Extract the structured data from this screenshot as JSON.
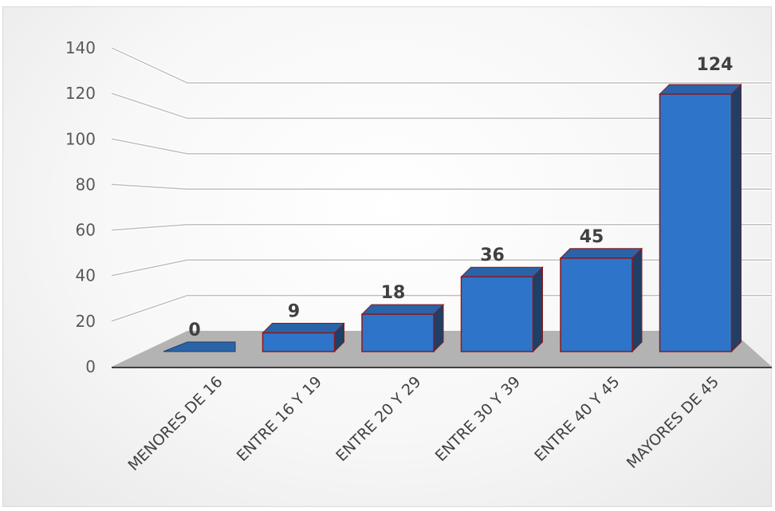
{
  "chart_data": {
    "type": "bar",
    "title": "",
    "xlabel": "",
    "ylabel": "",
    "categories": [
      "MENORES DE 16",
      "ENTRE 16 Y 19",
      "ENTRE 20 Y 29",
      "ENTRE 30 Y 39",
      "ENTRE 40 Y 45",
      "MAYORES DE 45"
    ],
    "values": [
      0,
      9,
      18,
      36,
      45,
      124
    ],
    "ylim": [
      0,
      140
    ],
    "yticks": [
      0,
      20,
      40,
      60,
      80,
      100,
      120,
      140
    ],
    "grid": true,
    "legend": "none",
    "style": "3d-column",
    "colors": {
      "bar_front": "#2e75c9",
      "bar_top": "#2a63a8",
      "bar_side": "#1f3f66",
      "bar_outline": "#8b1a1a",
      "floor": "#b3b3b3"
    }
  }
}
